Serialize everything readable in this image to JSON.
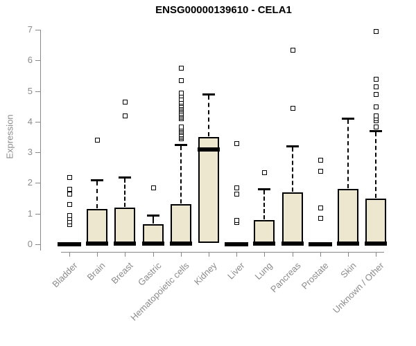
{
  "title": "ENSG00000139610 - CELA1",
  "colors": {
    "box_fill": "#ECE7CE",
    "box_border": "#000000",
    "median": "#000000",
    "whisker": "#000000",
    "outlier_border": "#000000",
    "outlier_fill": "#ffffff",
    "axis": "#878787",
    "tick_label": "#8b8b8b",
    "title_color": "#000000",
    "background": "#ffffff"
  },
  "chart_data": {
    "type": "boxplot",
    "title": "ENSG00000139610 - CELA1",
    "xlabel": "",
    "ylabel": "Expression",
    "ylim": [
      0,
      7
    ],
    "y_ticks": [
      0,
      1,
      2,
      3,
      4,
      5,
      6,
      7
    ],
    "grid": "off",
    "legend": "none",
    "categories": [
      "Bladder",
      "Brain",
      "Breast",
      "Gastric",
      "Hematopoietic cells",
      "Kidney",
      "Liver",
      "Lung",
      "Pancreas",
      "Prostate",
      "Skin",
      "Unknown / Other"
    ],
    "series": [
      {
        "name": "Bladder",
        "collapsed": true,
        "q1": 0,
        "median": 0,
        "q3": 0,
        "whisker_low": 0,
        "whisker_high": 0,
        "outliers": [
          0.65,
          0.75,
          0.85,
          0.95,
          1.3,
          1.65,
          1.8,
          2.2
        ]
      },
      {
        "name": "Brain",
        "collapsed": false,
        "q1": 0,
        "median": 0,
        "q3": 1.15,
        "whisker_low": 0,
        "whisker_high": 2.1,
        "outliers": [
          3.4
        ]
      },
      {
        "name": "Breast",
        "collapsed": false,
        "q1": 0,
        "median": 0,
        "q3": 1.2,
        "whisker_low": 0,
        "whisker_high": 2.2,
        "outliers": [
          4.2,
          4.65
        ]
      },
      {
        "name": "Gastric",
        "collapsed": false,
        "q1": 0,
        "median": 0,
        "q3": 0.65,
        "whisker_low": 0,
        "whisker_high": 0.95,
        "outliers": [
          1.85
        ]
      },
      {
        "name": "Hematopoietic cells",
        "collapsed": false,
        "q1": 0,
        "median": 0,
        "q3": 1.3,
        "whisker_low": 0,
        "whisker_high": 3.25,
        "outliers": [
          3.45,
          3.5,
          3.55,
          3.6,
          3.65,
          3.7,
          3.75,
          3.8,
          3.85,
          4.1,
          4.15,
          4.2,
          4.25,
          4.3,
          4.35,
          4.4,
          4.45,
          4.5,
          4.55,
          4.6,
          4.65,
          4.75,
          4.85,
          4.95,
          5.35,
          5.75
        ]
      },
      {
        "name": "Kidney",
        "collapsed": false,
        "q1": 0.05,
        "median": 3.1,
        "q3": 3.5,
        "whisker_low": 0.05,
        "whisker_high": 4.9,
        "outliers": []
      },
      {
        "name": "Liver",
        "collapsed": true,
        "q1": 0,
        "median": 0,
        "q3": 0,
        "whisker_low": 0,
        "whisker_high": 0,
        "outliers": [
          0.72,
          0.8,
          1.65,
          1.85,
          3.3
        ]
      },
      {
        "name": "Lung",
        "collapsed": false,
        "q1": 0,
        "median": 0,
        "q3": 0.78,
        "whisker_low": 0,
        "whisker_high": 1.8,
        "outliers": [
          2.35
        ]
      },
      {
        "name": "Pancreas",
        "collapsed": false,
        "q1": 0,
        "median": 0,
        "q3": 1.7,
        "whisker_low": 0,
        "whisker_high": 3.2,
        "outliers": [
          4.45,
          6.35
        ]
      },
      {
        "name": "Prostate",
        "collapsed": true,
        "q1": 0,
        "median": 0,
        "q3": 0,
        "whisker_low": 0,
        "whisker_high": 0,
        "outliers": [
          0.85,
          1.2,
          2.4,
          2.75
        ]
      },
      {
        "name": "Skin",
        "collapsed": false,
        "q1": 0,
        "median": 0,
        "q3": 1.8,
        "whisker_low": 0,
        "whisker_high": 4.1,
        "outliers": []
      },
      {
        "name": "Unknown / Other",
        "collapsed": false,
        "q1": 0,
        "median": 0,
        "q3": 1.5,
        "whisker_low": 0,
        "whisker_high": 3.7,
        "outliers": [
          3.85,
          4.05,
          4.1,
          4.2,
          4.5,
          4.9,
          5.15,
          5.4,
          6.95
        ]
      }
    ]
  }
}
